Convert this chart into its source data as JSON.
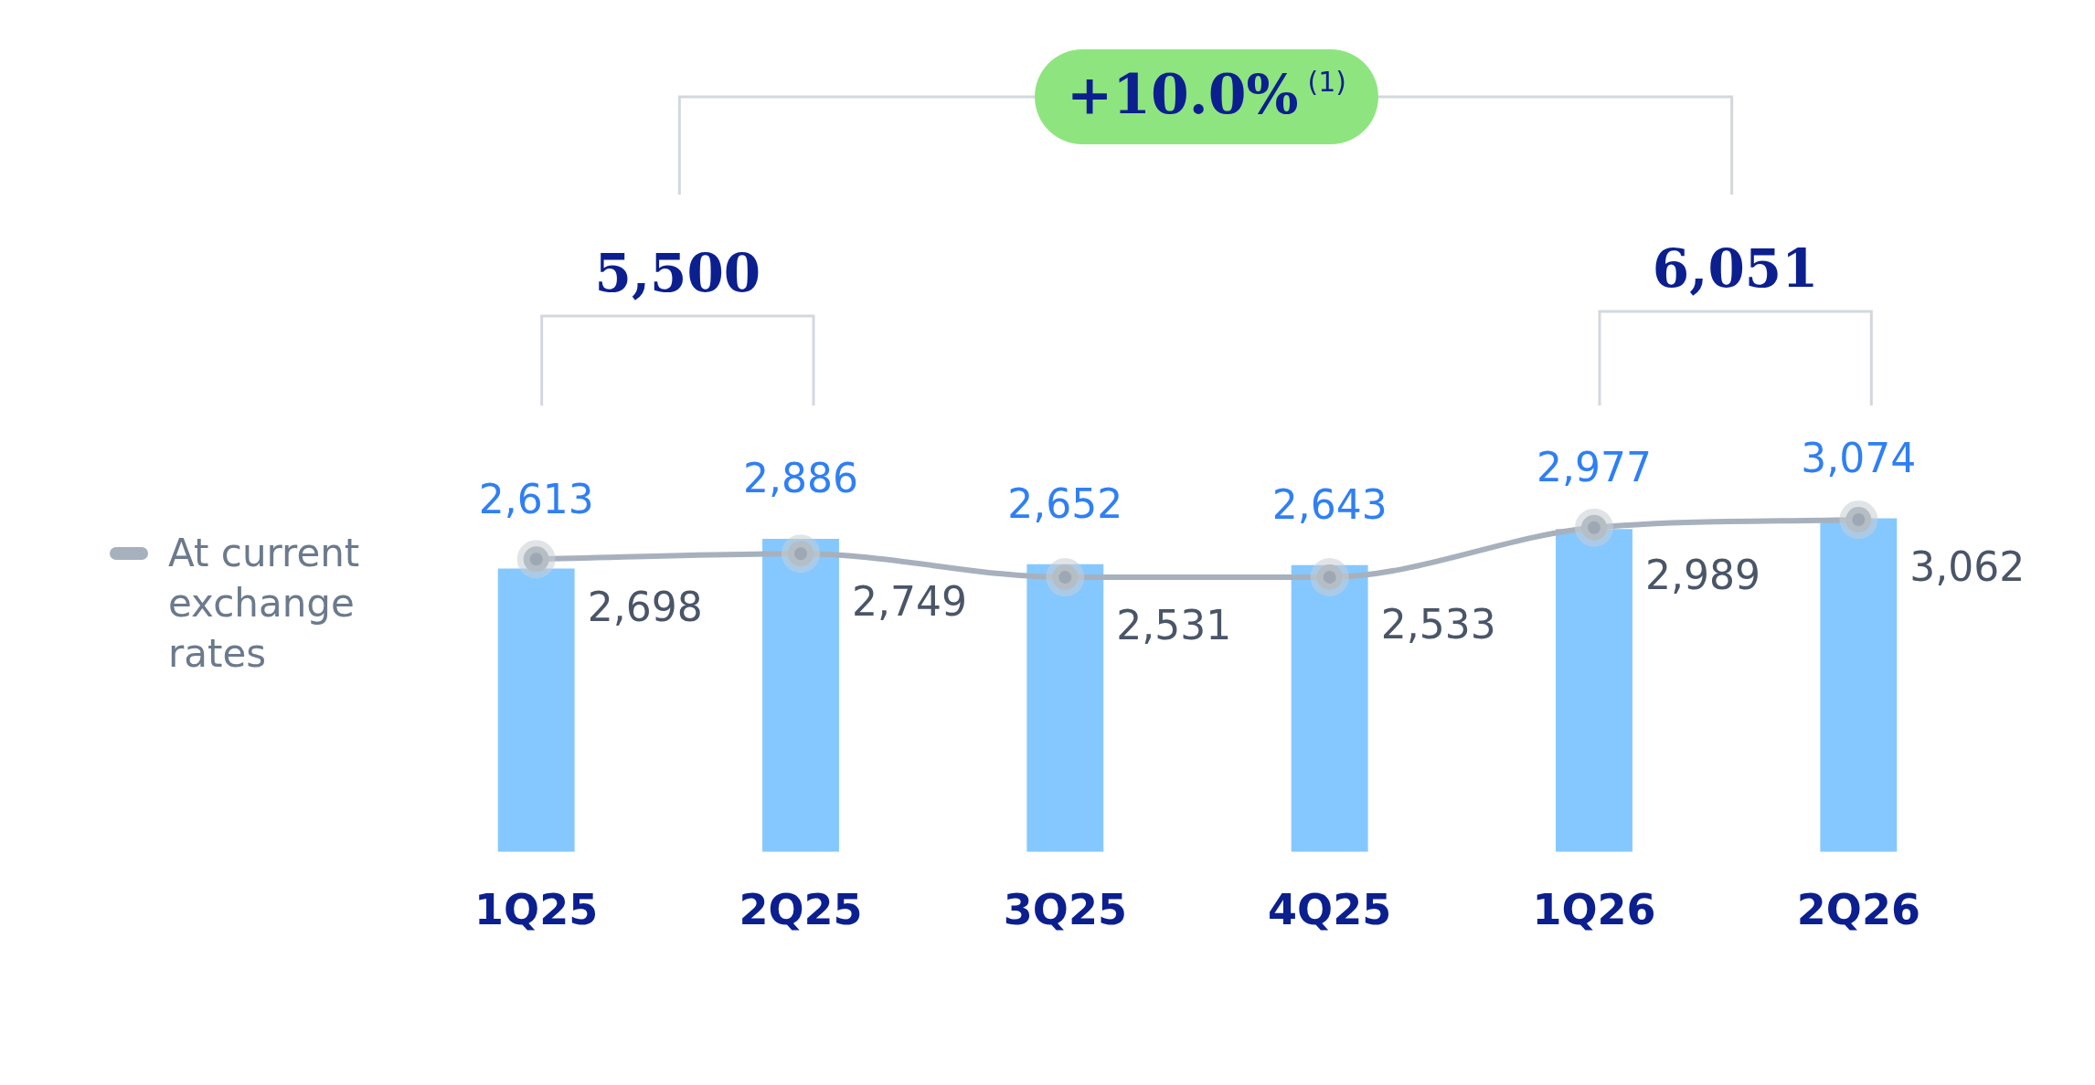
{
  "chart_data": {
    "type": "bar",
    "categories": [
      "1Q25",
      "2Q25",
      "3Q25",
      "4Q25",
      "1Q26",
      "2Q26"
    ],
    "series": [
      {
        "color": "#85c8ff",
        "values": [
          2613,
          2886,
          2652,
          2643,
          2977,
          3074
        ],
        "value_labels": [
          "2,613",
          "2,886",
          "2,652",
          "2,643",
          "2,977",
          "3,074"
        ]
      },
      {
        "type": "line",
        "name": "At current exchange rates",
        "color": "#a7b1bd",
        "values": [
          2698,
          2749,
          2531,
          2533,
          2989,
          3062
        ],
        "value_labels": [
          "2,698",
          "2,749",
          "2,531",
          "2,533",
          "2,989",
          "3,062"
        ]
      }
    ],
    "legend": "left",
    "marker": "circle",
    "grid": false,
    "annotations": [
      "5,500",
      "6,051",
      "+10.0% $^{(1)}$"
    ]
  }
}
